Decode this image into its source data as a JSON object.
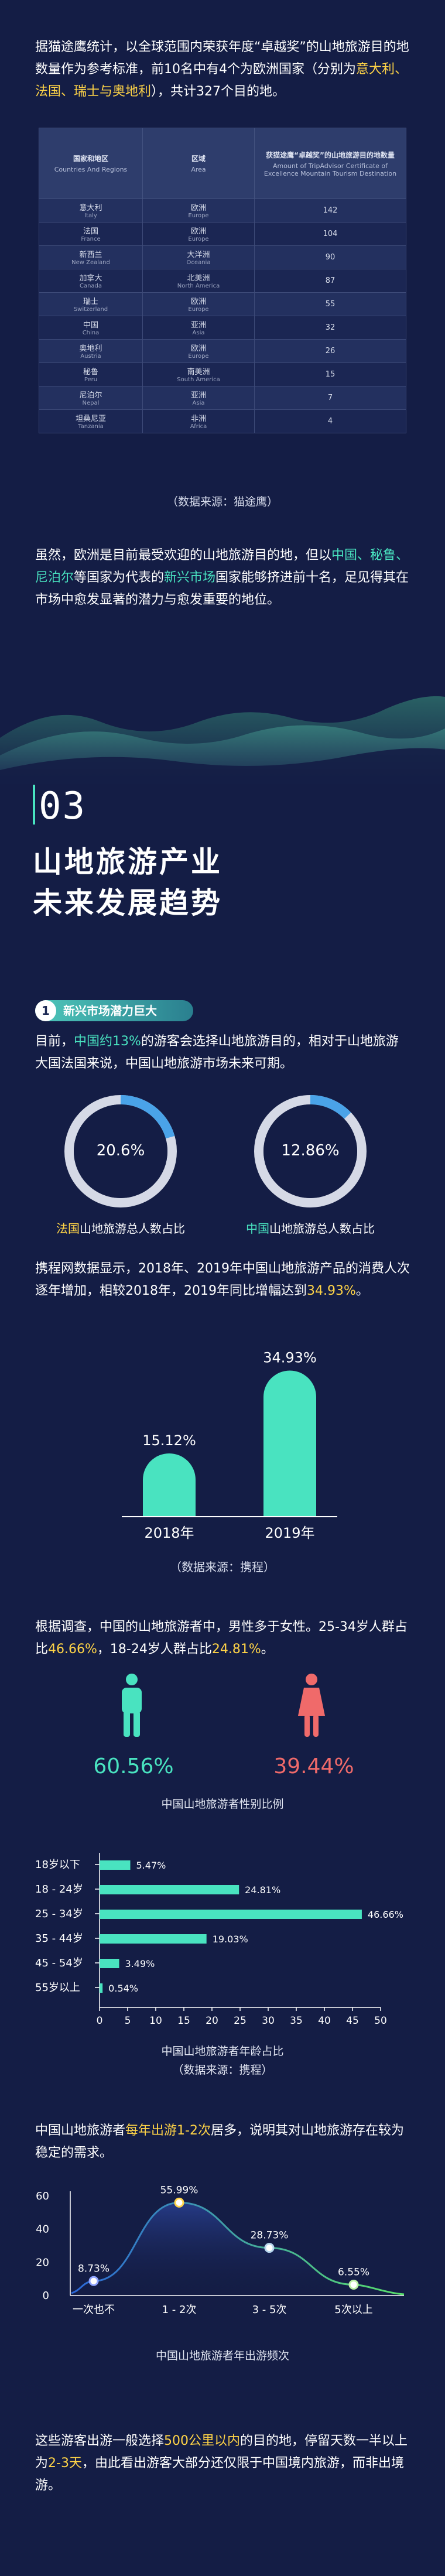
{
  "intro": {
    "text_a": "据猫途鹰统计，以全球范围内荣获年度“卓越奖”的山地旅游目的地数量作为参考标准，前10名中有4个为欧洲国家（分别为",
    "highlight_countries": "意大利、法国、瑞士与奥地利",
    "text_b": "），共计327个目的地。"
  },
  "table": {
    "headers": [
      {
        "cn": "国家和地区",
        "en": "Countries And Regions"
      },
      {
        "cn": "区域",
        "en": "Area"
      },
      {
        "cn": "获猫途鹰“卓越奖”的山地旅游目的地数量",
        "en": "Amount of TripAdvisor Certificate of Excellence Mountain Tourism Destination"
      }
    ],
    "rows": [
      {
        "country": "意大利",
        "country_en": "Italy",
        "area": "欧洲",
        "area_en": "Europe",
        "amount": "142"
      },
      {
        "country": "法国",
        "country_en": "France",
        "area": "欧洲",
        "area_en": "Europe",
        "amount": "104"
      },
      {
        "country": "新西兰",
        "country_en": "New Zealand",
        "area": "大洋洲",
        "area_en": "Oceania",
        "amount": "90"
      },
      {
        "country": "加拿大",
        "country_en": "Canada",
        "area": "北美洲",
        "area_en": "North America",
        "amount": "87"
      },
      {
        "country": "瑞士",
        "country_en": "Switzerland",
        "area": "欧洲",
        "area_en": "Europe",
        "amount": "55"
      },
      {
        "country": "中国",
        "country_en": "China",
        "area": "亚洲",
        "area_en": "Asia",
        "amount": "32"
      },
      {
        "country": "奥地利",
        "country_en": "Austria",
        "area": "欧洲",
        "area_en": "Europe",
        "amount": "26"
      },
      {
        "country": "秘鲁",
        "country_en": "Peru",
        "area": "南美洲",
        "area_en": "South America",
        "amount": "15"
      },
      {
        "country": "尼泊尔",
        "country_en": "Nepal",
        "area": "亚洲",
        "area_en": "Asia",
        "amount": "7"
      },
      {
        "country": "坦桑尼亚",
        "country_en": "Tanzania",
        "area": "非洲",
        "area_en": "Africa",
        "amount": "4"
      }
    ],
    "source": "（数据来源：猫途鹰）"
  },
  "para2": {
    "t1": "虽然，欧洲是目前最受欢迎的山地旅游目的地，但以",
    "h1": "中国、秘鲁、尼泊尔",
    "t2": "等国家为代表的",
    "h2": "新兴市场",
    "t3": "国家能够挤进前十名，足见得其在市场中愈发显著的潜力与愈发重要的地位。"
  },
  "section03": {
    "number": "03",
    "title_line1": "山地旅游产业",
    "title_line2": "未来发展趋势"
  },
  "subhead1": {
    "num": "1",
    "text": "新兴市场潜力巨大"
  },
  "para3": {
    "t1": "目前，",
    "h1": "中国约13%",
    "t2": "的游客会选择山地旅游目的，相对于山地旅游大国法国来说，中国山地旅游市场未来可期。"
  },
  "circles": [
    {
      "value_text": "20.6%",
      "value": 20.6,
      "cap_hl": "法国",
      "cap_rest": "山地旅游总人数占比",
      "hl_color": "#ffd447"
    },
    {
      "value_text": "12.86%",
      "value": 12.86,
      "cap_hl": "中国",
      "cap_rest": "山地旅游总人数占比",
      "hl_color": "#49e3c0"
    }
  ],
  "para4": {
    "t1": "携程网数据显示，2018年、2019年中国山地旅游产品的消费人次逐年增加，相较2018年，2019年同比增幅达到",
    "h1": "34.93%",
    "t2": "。"
  },
  "chart_data": [
    {
      "type": "bar",
      "categories": [
        "2018年",
        "2019年"
      ],
      "values": [
        15.12,
        34.93
      ],
      "data_labels": [
        "15.12%",
        "34.93%"
      ],
      "source": "（数据来源：携程）"
    },
    {
      "type": "bar",
      "orientation": "horizontal",
      "categories": [
        "18岁以下",
        "18 - 24岁",
        "25 - 34岁",
        "35 - 44岁",
        "45 - 54岁",
        "55岁以上"
      ],
      "values": [
        5.47,
        24.81,
        46.66,
        19.03,
        3.49,
        0.54
      ],
      "data_labels": [
        "5.47%",
        "24.81%",
        "46.66%",
        "19.03%",
        "3.49%",
        "0.54%"
      ],
      "x_ticks": [
        "0",
        "5",
        "10",
        "15",
        "20",
        "25",
        "30",
        "35",
        "40",
        "45",
        "50"
      ],
      "xlim": [
        0,
        50
      ],
      "title": "中国山地旅游者年龄占比",
      "source": "（数据来源：携程）"
    },
    {
      "type": "line",
      "categories": [
        "一次也不",
        "1 - 2次",
        "3 - 5次",
        "5次以上"
      ],
      "values": [
        8.73,
        55.99,
        28.73,
        6.55
      ],
      "data_labels": [
        "8.73%",
        "55.99%",
        "28.73%",
        "6.55%"
      ],
      "y_ticks": [
        "0",
        "20",
        "40",
        "60"
      ],
      "ylim": [
        0,
        60
      ],
      "title": "中国山地旅游者年出游频次"
    }
  ],
  "para5": {
    "t1": "根据调查，中国的山地旅游者中，男性多于女性。25-34岁人群占比",
    "h1": "46.66%",
    "t2": "，18-24岁人群占比",
    "h2": "24.81%",
    "t3": "。"
  },
  "gender": {
    "male_pct": "60.56%",
    "female_pct": "39.44%",
    "caption": "中国山地旅游者性别比例",
    "male_color": "#49e3c0",
    "female_color": "#f06a6a"
  },
  "para6": {
    "t1": "中国山地旅游者",
    "h1": "每年出游1-2次",
    "t2": "居多，说明其对山地旅游存在较为稳定的需求。"
  },
  "para7": {
    "t1": "这些游客出游一般选择",
    "h1": "500公里以内",
    "t2": "的目的地，停留天数一半以上为",
    "h2": "2-3天",
    "t3": "，由此看出游客大部分还仅限于中国境内旅游，而非出境游。"
  },
  "colors": {
    "background": "#141d45",
    "accent": "#49e3c0",
    "highlight": "#ffd447"
  }
}
